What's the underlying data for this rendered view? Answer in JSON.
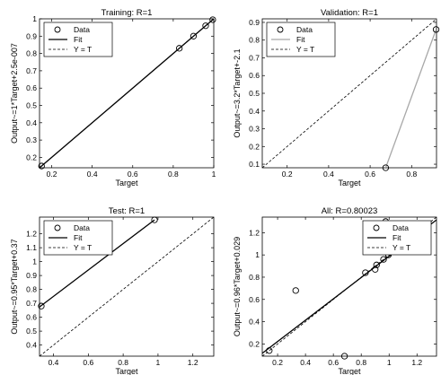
{
  "chart_data": [
    {
      "type": "scatter",
      "title": "Training: R=1",
      "xlabel": "Target",
      "ylabel": "Output~=1*Target+2.5e-007",
      "xlim": [
        0.14,
        1.0
      ],
      "ylim": [
        0.14,
        1.0
      ],
      "xticks": [
        0.2,
        0.4,
        0.6,
        0.8,
        1
      ],
      "yticks": [
        0.2,
        0.3,
        0.4,
        0.5,
        0.6,
        0.7,
        0.8,
        0.9,
        1
      ],
      "data_points": [
        [
          0.15,
          0.15
        ],
        [
          0.83,
          0.83
        ],
        [
          0.9,
          0.9
        ],
        [
          0.96,
          0.96
        ],
        [
          0.995,
          0.995
        ]
      ],
      "fit_line": [
        [
          0.14,
          0.14
        ],
        [
          1.0,
          1.0
        ]
      ],
      "yt_line": [
        [
          0.14,
          0.14
        ],
        [
          1.0,
          1.0
        ]
      ],
      "fit_color": "#000000",
      "legend": {
        "placement": "top-left",
        "entries": [
          "Data",
          "Fit",
          "Y = T"
        ]
      }
    },
    {
      "type": "scatter",
      "title": "Validation: R=1",
      "xlabel": "Target",
      "ylabel": "Output~=3.2*Target+-2.1",
      "xlim": [
        0.08,
        0.92
      ],
      "ylim": [
        0.08,
        0.92
      ],
      "xticks": [
        0.2,
        0.4,
        0.6,
        0.8
      ],
      "yticks": [
        0.1,
        0.2,
        0.3,
        0.4,
        0.5,
        0.6,
        0.7,
        0.8,
        0.9
      ],
      "data_points": [
        [
          0.675,
          0.08
        ],
        [
          0.918,
          0.86
        ]
      ],
      "fit_line": [
        [
          0.675,
          0.08
        ],
        [
          0.918,
          0.86
        ]
      ],
      "yt_line": [
        [
          0.08,
          0.08
        ],
        [
          0.92,
          0.92
        ]
      ],
      "fit_color": "#a8a8a8",
      "legend": {
        "placement": "top-left",
        "entries": [
          "Data",
          "Fit",
          "Y = T"
        ]
      }
    },
    {
      "type": "scatter",
      "title": "Test: R=1",
      "xlabel": "Target",
      "ylabel": "Output~=0.95*Target+0.37",
      "xlim": [
        0.32,
        1.32
      ],
      "ylim": [
        0.32,
        1.32
      ],
      "xticks": [
        0.4,
        0.6,
        0.8,
        1,
        1.2
      ],
      "yticks": [
        0.4,
        0.5,
        0.6,
        0.7,
        0.8,
        0.9,
        1,
        1.1,
        1.2
      ],
      "data_points": [
        [
          0.33,
          0.68
        ],
        [
          0.98,
          1.3
        ]
      ],
      "fit_line": [
        [
          0.32,
          0.674
        ],
        [
          0.98,
          1.3
        ]
      ],
      "yt_line": [
        [
          0.32,
          0.32
        ],
        [
          1.32,
          1.32
        ]
      ],
      "fit_color": "#000000",
      "legend": {
        "placement": "top-left",
        "entries": [
          "Data",
          "Fit",
          "Y = T"
        ]
      }
    },
    {
      "type": "scatter",
      "title": "All: R=0.80023",
      "xlabel": "Target",
      "ylabel": "Output~=0.96*Target+0.029",
      "xlim": [
        0.09,
        1.34
      ],
      "ylim": [
        0.09,
        1.34
      ],
      "xticks": [
        0.2,
        0.4,
        0.6,
        0.8,
        1,
        1.2
      ],
      "yticks": [
        0.2,
        0.4,
        0.6,
        0.8,
        1,
        1.2
      ],
      "data_points": [
        [
          0.14,
          0.14
        ],
        [
          0.33,
          0.68
        ],
        [
          0.68,
          0.09
        ],
        [
          0.83,
          0.84
        ],
        [
          0.9,
          0.87
        ],
        [
          0.91,
          0.91
        ],
        [
          0.96,
          0.96
        ],
        [
          0.975,
          1.3
        ],
        [
          0.995,
          1.0
        ]
      ],
      "fit_line": [
        [
          0.09,
          0.116
        ],
        [
          1.34,
          1.315
        ]
      ],
      "yt_line": [
        [
          0.09,
          0.09
        ],
        [
          1.34,
          1.34
        ]
      ],
      "fit_color": "#000000",
      "legend": {
        "placement": "top-right",
        "entries": [
          "Data",
          "Fit",
          "Y = T"
        ]
      }
    }
  ]
}
